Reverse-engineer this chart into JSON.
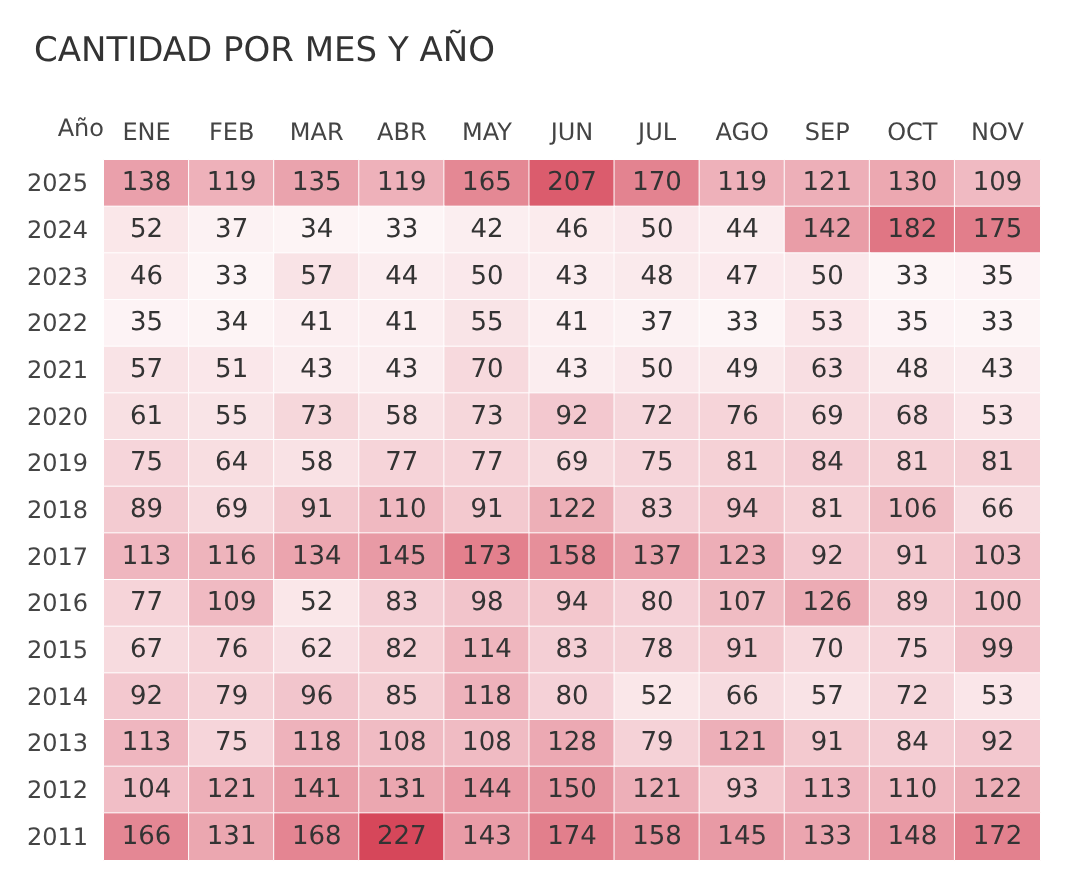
{
  "chart_data": {
    "type": "heatmap",
    "title": "CANTIDAD POR MES Y AÑO",
    "ylabel": "Año",
    "data_labels": true,
    "categories": [
      "ENE",
      "FEB",
      "MAR",
      "ABR",
      "MAY",
      "JUN",
      "JUL",
      "AGO",
      "SEP",
      "OCT",
      "NOV"
    ],
    "y_categories": [
      "2025",
      "2024",
      "2023",
      "2022",
      "2021",
      "2020",
      "2019",
      "2018",
      "2017",
      "2016",
      "2015",
      "2014",
      "2013",
      "2012",
      "2011"
    ],
    "cells": [
      [
        138,
        119,
        135,
        119,
        165,
        207,
        170,
        119,
        121,
        130,
        109
      ],
      [
        52,
        37,
        34,
        33,
        42,
        46,
        50,
        44,
        142,
        182,
        175
      ],
      [
        46,
        33,
        57,
        44,
        50,
        43,
        48,
        47,
        50,
        33,
        35
      ],
      [
        35,
        34,
        41,
        41,
        55,
        41,
        37,
        33,
        53,
        35,
        33
      ],
      [
        57,
        51,
        43,
        43,
        70,
        43,
        50,
        49,
        63,
        48,
        43
      ],
      [
        61,
        55,
        73,
        58,
        73,
        92,
        72,
        76,
        69,
        68,
        53
      ],
      [
        75,
        64,
        58,
        77,
        77,
        69,
        75,
        81,
        84,
        81,
        81
      ],
      [
        89,
        69,
        91,
        110,
        91,
        122,
        83,
        94,
        81,
        106,
        66
      ],
      [
        113,
        116,
        134,
        145,
        173,
        158,
        137,
        123,
        92,
        91,
        103
      ],
      [
        77,
        109,
        52,
        83,
        98,
        94,
        80,
        107,
        126,
        89,
        100
      ],
      [
        67,
        76,
        62,
        82,
        114,
        83,
        78,
        91,
        70,
        75,
        99
      ],
      [
        92,
        79,
        96,
        85,
        118,
        80,
        52,
        66,
        57,
        72,
        53
      ],
      [
        113,
        75,
        118,
        108,
        108,
        128,
        79,
        121,
        91,
        84,
        92
      ],
      [
        104,
        121,
        141,
        131,
        144,
        150,
        121,
        93,
        113,
        110,
        122
      ],
      [
        166,
        131,
        168,
        227,
        143,
        174,
        158,
        145,
        133,
        148,
        172
      ]
    ]
  }
}
